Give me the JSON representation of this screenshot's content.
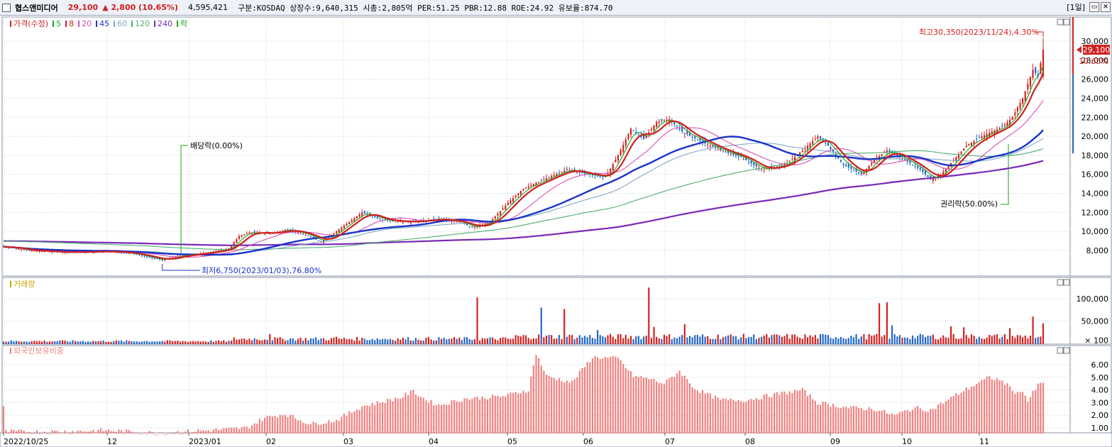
{
  "header": {
    "stock_name": "협스앤미디어",
    "price": "29,100",
    "change": "▲ 2,800 (10.65%)",
    "volume": "4,595,421",
    "info": "구분:KOSDAQ 상장수:9,640,315 시총:2,805억 PER:51.25 PBR:12.88 ROE:24.92 유보율:874.70",
    "period": "[1일]"
  },
  "legend": {
    "items": [
      {
        "label": "가격(수정)",
        "color": "#d21f1f"
      },
      {
        "label": "5",
        "color": "#1aa31a"
      },
      {
        "label": "8",
        "color": "#d21f1f"
      },
      {
        "label": "20",
        "color": "#d94fb6"
      },
      {
        "label": "45",
        "color": "#1a34c8"
      },
      {
        "label": "60",
        "color": "#7fa9c6"
      },
      {
        "label": "120",
        "color": "#4cae6e"
      },
      {
        "label": "240",
        "color": "#7a28b8"
      },
      {
        "label": "락",
        "color": "#1aa31a"
      }
    ]
  },
  "annotations": {
    "high": "최고30,350(2023/11/24),4.30%",
    "low": "최저6,750(2023/01/03),76.80%",
    "dividend": "배당락(0.00%)",
    "rights": "권리락(50.00%)",
    "current_price": "29,100",
    "current_pct": "10.65%"
  },
  "panels": {
    "volume_title": "거래량",
    "foreign_title": "외국인보유비중"
  },
  "axes": {
    "price_ticks": [
      "30,000",
      "28,000",
      "26,000",
      "24,000",
      "22,000",
      "20,000",
      "18,000",
      "16,000",
      "14,000",
      "12,000",
      "10,000",
      "8,000"
    ],
    "volume_ticks": [
      "100,000",
      "50,000",
      "× 100"
    ],
    "foreign_ticks": [
      "6.00",
      "5.00",
      "4.00",
      "3.00",
      "2.00",
      "1.00"
    ],
    "x_labels": [
      "2022/10/25",
      "12",
      "2023/01",
      "02",
      "03",
      "04",
      "05",
      "06",
      "07",
      "08",
      "09",
      "10",
      "11"
    ]
  },
  "colors": {
    "up": "#d21f1f",
    "down": "#2266c8",
    "ma5": "#1aa31a",
    "ma8": "#d21f1f",
    "ma20": "#d94fb6",
    "ma45": "#1a34c8",
    "ma60": "#7fa9c6",
    "ma120": "#4cae6e",
    "ma240": "#7a28b8",
    "foreign_bar": "#f08080"
  },
  "chart_data": {
    "type": "candlestick",
    "price_range": [
      6500,
      31500
    ],
    "start_date": "2022/10/25",
    "high": {
      "value": 30350,
      "date": "2023/11/24"
    },
    "low": {
      "value": 6750,
      "date": "2023/01/03"
    },
    "last_close": 29100,
    "close_anchors": [
      [
        0,
        8400
      ],
      [
        10,
        8000
      ],
      [
        25,
        7800
      ],
      [
        40,
        7900
      ],
      [
        50,
        7700
      ],
      [
        58,
        7200
      ],
      [
        62,
        7000
      ],
      [
        68,
        7400
      ],
      [
        80,
        7800
      ],
      [
        88,
        8200
      ],
      [
        92,
        9500
      ],
      [
        96,
        9900
      ],
      [
        105,
        9800
      ],
      [
        110,
        10200
      ],
      [
        118,
        9700
      ],
      [
        124,
        8900
      ],
      [
        130,
        10000
      ],
      [
        135,
        11000
      ],
      [
        140,
        12000
      ],
      [
        148,
        11200
      ],
      [
        158,
        11000
      ],
      [
        170,
        11300
      ],
      [
        178,
        11000
      ],
      [
        183,
        10400
      ],
      [
        190,
        11000
      ],
      [
        197,
        13000
      ],
      [
        203,
        14500
      ],
      [
        212,
        15600
      ],
      [
        220,
        16500
      ],
      [
        228,
        16000
      ],
      [
        235,
        15700
      ],
      [
        240,
        18000
      ],
      [
        245,
        20800
      ],
      [
        250,
        19700
      ],
      [
        255,
        21500
      ],
      [
        260,
        21800
      ],
      [
        265,
        20500
      ],
      [
        272,
        19500
      ],
      [
        280,
        18500
      ],
      [
        288,
        17800
      ],
      [
        296,
        16500
      ],
      [
        305,
        17000
      ],
      [
        312,
        18500
      ],
      [
        318,
        20000
      ],
      [
        322,
        19000
      ],
      [
        328,
        17000
      ],
      [
        335,
        16000
      ],
      [
        340,
        17500
      ],
      [
        345,
        18500
      ],
      [
        352,
        17500
      ],
      [
        358,
        16500
      ],
      [
        362,
        15500
      ],
      [
        366,
        16000
      ],
      [
        370,
        17200
      ],
      [
        376,
        19000
      ],
      [
        382,
        20000
      ],
      [
        390,
        21000
      ],
      [
        394,
        22000
      ],
      [
        398,
        24000
      ],
      [
        402,
        27000
      ],
      [
        404,
        26300
      ],
      [
        406,
        29100
      ]
    ],
    "volume_spikes": [
      [
        104,
        21000
      ],
      [
        130,
        15000
      ],
      [
        185,
        103000
      ],
      [
        210,
        80000
      ],
      [
        219,
        77000
      ],
      [
        232,
        30000
      ],
      [
        252,
        125000
      ],
      [
        254,
        37000
      ],
      [
        266,
        43000
      ],
      [
        310,
        15000
      ],
      [
        342,
        90000
      ],
      [
        345,
        92000
      ],
      [
        347,
        40000
      ],
      [
        370,
        38000
      ],
      [
        375,
        36000
      ],
      [
        393,
        34000
      ],
      [
        402,
        60000
      ],
      [
        406,
        45000
      ]
    ],
    "foreign_ratio_anchors": [
      [
        0,
        2.6
      ],
      [
        1,
        0.7
      ],
      [
        20,
        0.7
      ],
      [
        40,
        0.8
      ],
      [
        60,
        0.6
      ],
      [
        80,
        0.8
      ],
      [
        95,
        1.0
      ],
      [
        102,
        1.8
      ],
      [
        110,
        2.1
      ],
      [
        120,
        1.3
      ],
      [
        130,
        1.6
      ],
      [
        140,
        2.7
      ],
      [
        155,
        3.4
      ],
      [
        160,
        3.9
      ],
      [
        165,
        3.2
      ],
      [
        170,
        2.8
      ],
      [
        180,
        3.3
      ],
      [
        195,
        3.5
      ],
      [
        205,
        4.0
      ],
      [
        208,
        6.9
      ],
      [
        212,
        5.1
      ],
      [
        222,
        4.6
      ],
      [
        230,
        6.6
      ],
      [
        240,
        6.5
      ],
      [
        246,
        5.1
      ],
      [
        252,
        4.9
      ],
      [
        258,
        4.5
      ],
      [
        264,
        5.5
      ],
      [
        270,
        4.1
      ],
      [
        280,
        3.2
      ],
      [
        290,
        3.2
      ],
      [
        300,
        3.6
      ],
      [
        312,
        4.0
      ],
      [
        318,
        3.0
      ],
      [
        330,
        2.6
      ],
      [
        340,
        2.5
      ],
      [
        348,
        2.0
      ],
      [
        356,
        2.6
      ],
      [
        362,
        2.4
      ],
      [
        372,
        3.6
      ],
      [
        380,
        4.5
      ],
      [
        385,
        5.0
      ],
      [
        390,
        4.7
      ],
      [
        396,
        3.7
      ],
      [
        398,
        4.0
      ],
      [
        400,
        3.1
      ],
      [
        404,
        4.4
      ],
      [
        406,
        4.5
      ]
    ]
  }
}
